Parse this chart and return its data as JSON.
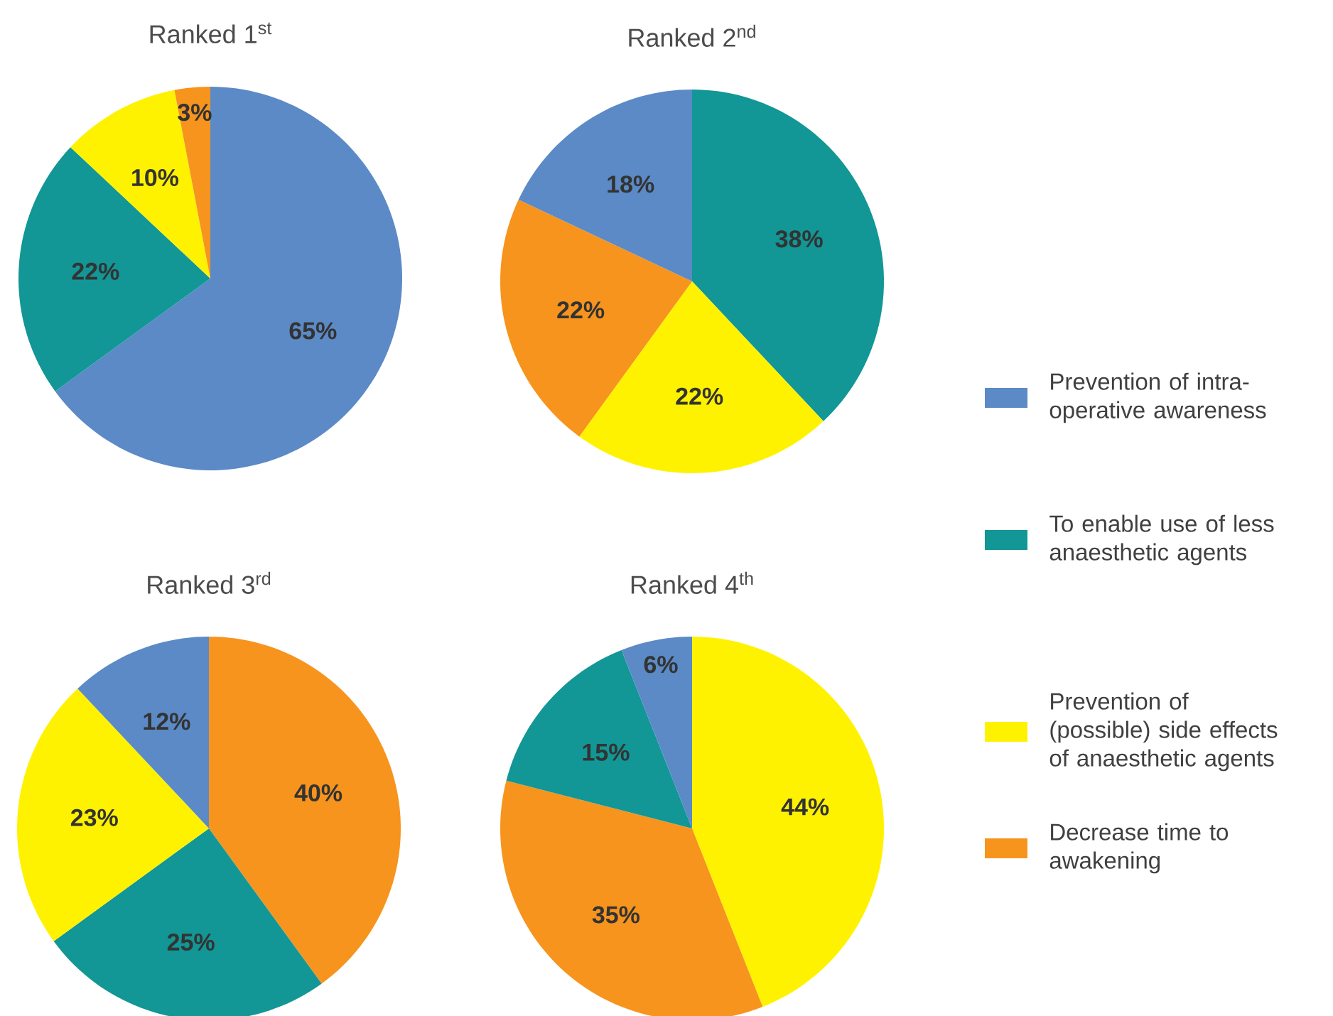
{
  "chart_data": [
    {
      "type": "pie",
      "title": "Ranked 1$^{st}$",
      "categories": [
        "Prevention of intra-operative awareness",
        "To enable use of less anaesthetic agents",
        "Prevention of (possible) side effects of anaesthetic agents",
        "Decrease time to awakening"
      ],
      "values": [
        65,
        22,
        10,
        3
      ],
      "value_labels": [
        "65%",
        "22%",
        "10%",
        "3%"
      ],
      "colors": [
        "#5b8ac6",
        "#129696",
        "#fff200",
        "#f7941d"
      ],
      "legend": "right"
    },
    {
      "type": "pie",
      "title": "Ranked 2$^{nd}$",
      "categories": [
        null,
        null,
        null,
        null
      ],
      "values": [
        38,
        22,
        22,
        18
      ],
      "value_labels": [
        "38%",
        "22%",
        "22%",
        "18%"
      ],
      "colors": [
        "#129696",
        "#fff200",
        "#f7941d",
        "#5b8ac6"
      ]
    },
    {
      "type": "pie",
      "title": "Ranked 3$^{rd}$",
      "categories": [
        null,
        null,
        null,
        null
      ],
      "values": [
        40,
        25,
        23,
        12
      ],
      "value_labels": [
        "40%",
        "25%",
        "23%",
        "12%"
      ],
      "colors": [
        "#f7941d",
        "#129696",
        "#fff200",
        "#5b8ac6"
      ]
    },
    {
      "type": "pie",
      "title": "Ranked 4$^{th}$",
      "categories": [
        null,
        null,
        null,
        null
      ],
      "values": [
        44,
        35,
        15,
        6
      ],
      "value_labels": [
        "44%",
        "35%",
        "15%",
        "6%"
      ],
      "colors": [
        "#fff200",
        "#f7941d",
        "#129696",
        "#5b8ac6"
      ]
    }
  ]
}
